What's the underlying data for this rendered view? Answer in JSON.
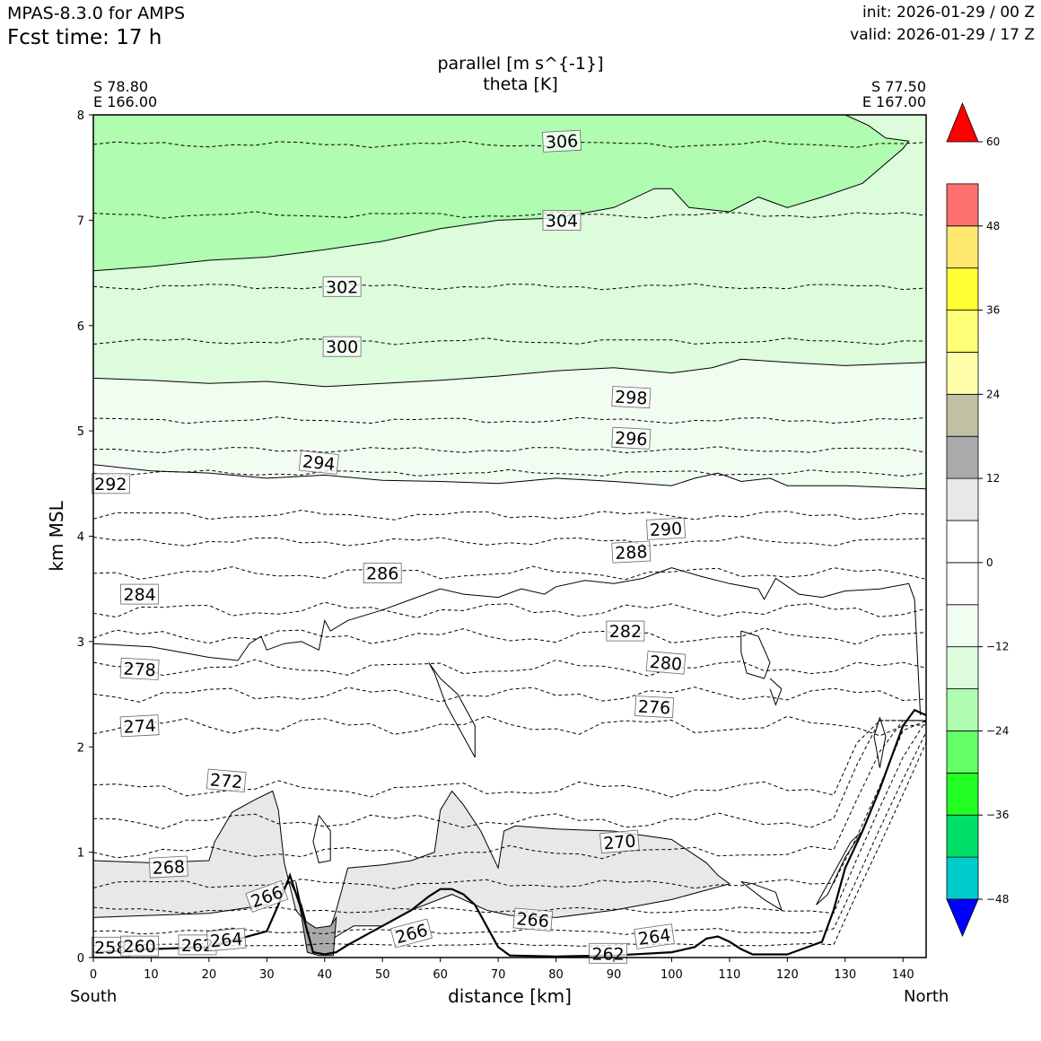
{
  "header": {
    "model": "MPAS-8.3.0 for AMPS",
    "fcst": "Fcst time:   17 h",
    "init": "init: 2026-01-29 / 00 Z",
    "valid": "valid: 2026-01-29 / 17 Z"
  },
  "corners": {
    "left_lat": "S 78.80",
    "left_lon": "E 166.00",
    "right_lat": "S 77.50",
    "right_lon": "E 167.00"
  },
  "directions": {
    "left": "South",
    "right": "North"
  },
  "colors": {
    "terrain": "#aaaaaa",
    "band_m6": "#e8e8e8",
    "band_m12": "#f2fdf2",
    "band_m18": "#dcfcdc",
    "band_m24": "#b0fcb0"
  },
  "chart_data": {
    "type": "contour",
    "title": [
      "parallel [m s^{-1}]",
      "theta [K]"
    ],
    "xlabel": "distance [km]",
    "ylabel": "km MSL",
    "xlim": [
      0,
      144
    ],
    "ylim": [
      0,
      8
    ],
    "xticks": [
      "0",
      "10",
      "20",
      "30",
      "40",
      "50",
      "60",
      "70",
      "80",
      "90",
      "100",
      "110",
      "120",
      "130",
      "140"
    ],
    "yticks": [
      "0",
      "1",
      "2",
      "3",
      "4",
      "5",
      "6",
      "7",
      "8"
    ],
    "colorbar": {
      "ticks": [
        "60",
        "48",
        "36",
        "24",
        "12",
        "0",
        "−12",
        "−24",
        "−36",
        "−48"
      ],
      "levels": [
        -54,
        -48,
        -42,
        -36,
        -30,
        -24,
        -18,
        -12,
        -6,
        0,
        6,
        12,
        18,
        24,
        30,
        36,
        42,
        48,
        54,
        60
      ],
      "colors": [
        "#0000ff",
        "#00cccc",
        "#00e066",
        "#22ff22",
        "#66ff66",
        "#b0fcb0",
        "#dcfcdc",
        "#f2fdf2",
        "#ffffff",
        "#ffffff",
        "#e8e8e8",
        "#aaaaaa",
        "#c0c0a4",
        "#ffffaa",
        "#ffff77",
        "#ffff33",
        "#ffe870",
        "#ff7070",
        "#ff0000"
      ]
    },
    "parallel_wind_regions": [
      {
        "range": [
          -24,
          -18
        ],
        "description": "upper layer above ~6.5 km (south) to ~7.7 km (north)"
      },
      {
        "range": [
          -18,
          -12
        ],
        "description": "layer from ~5.5 km to ~7 km"
      },
      {
        "range": [
          -12,
          -6
        ],
        "description": "layer from ~4.6 km to ~5.5 km"
      },
      {
        "range": [
          6,
          12
        ],
        "description": "low-level layer 0–1.6 km"
      },
      {
        "range": [
          12,
          18
        ],
        "description": "small area near x=37 km, below 0.4 km"
      }
    ],
    "theta_contours": [
      {
        "value": 258,
        "label": "258"
      },
      {
        "value": 260,
        "label": "260"
      },
      {
        "value": 262,
        "label": "262"
      },
      {
        "value": 264,
        "label": "264"
      },
      {
        "value": 266,
        "label": "266"
      },
      {
        "value": 268,
        "label": "268"
      },
      {
        "value": 270,
        "label": "270"
      },
      {
        "value": 272,
        "label": "272"
      },
      {
        "value": 274,
        "label": "274"
      },
      {
        "value": 276,
        "label": "276"
      },
      {
        "value": 278,
        "label": "278"
      },
      {
        "value": 280,
        "label": "280"
      },
      {
        "value": 282,
        "label": "282"
      },
      {
        "value": 284,
        "label": "284"
      },
      {
        "value": 286,
        "label": "286"
      },
      {
        "value": 288,
        "label": "288"
      },
      {
        "value": 290,
        "label": "290"
      },
      {
        "value": 292,
        "label": "292"
      },
      {
        "value": 294,
        "label": "294"
      },
      {
        "value": 296,
        "label": "296"
      },
      {
        "value": 298,
        "label": "298"
      },
      {
        "value": 300,
        "label": "300"
      },
      {
        "value": 302,
        "label": "302"
      },
      {
        "value": 304,
        "label": "304"
      },
      {
        "value": 306,
        "label": "306"
      }
    ],
    "terrain": {
      "x": [
        0,
        10,
        20,
        30,
        32,
        34,
        36,
        38,
        40,
        42,
        44,
        50,
        55,
        58,
        60,
        62,
        64,
        66,
        68,
        70,
        72,
        80,
        90,
        100,
        104,
        106,
        108,
        110,
        112,
        114,
        120,
        126,
        128,
        130,
        133,
        136,
        140,
        142,
        144
      ],
      "y": [
        0.05,
        0.08,
        0.1,
        0.25,
        0.5,
        0.78,
        0.45,
        0.05,
        0.03,
        0.05,
        0.12,
        0.3,
        0.45,
        0.58,
        0.65,
        0.65,
        0.6,
        0.5,
        0.3,
        0.1,
        0.02,
        0.01,
        0.02,
        0.05,
        0.1,
        0.18,
        0.2,
        0.15,
        0.08,
        0.03,
        0.03,
        0.15,
        0.45,
        0.85,
        1.2,
        1.6,
        2.2,
        2.35,
        2.3
      ]
    }
  }
}
